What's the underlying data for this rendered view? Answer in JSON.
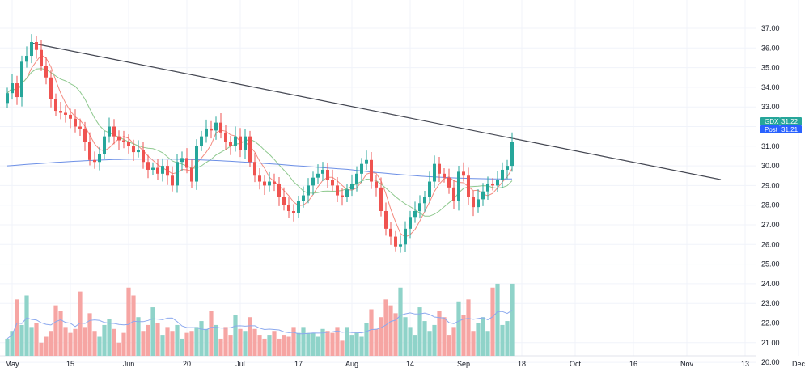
{
  "chart_data": {
    "type": "candlestick",
    "ticker": "GDX",
    "y_range": [
      19.6,
      37.2
    ],
    "y_ticks": [
      "37.00",
      "36.00",
      "35.00",
      "34.00",
      "33.00",
      "32.00",
      "31.00",
      "30.00",
      "29.00",
      "28.00",
      "27.00",
      "26.00",
      "25.00",
      "24.00",
      "23.00",
      "22.00",
      "21.00",
      "20.00"
    ],
    "x_tick_labels": [
      "May",
      "15",
      "Jun",
      "20",
      "Jul",
      "17",
      "Aug",
      "14",
      "Sep",
      "18",
      "Oct",
      "16",
      "Nov",
      "13",
      "Dec"
    ],
    "x_tick_bar_index": [
      0,
      12,
      24,
      36,
      47,
      59,
      70,
      82,
      93,
      105,
      116,
      128,
      139,
      151,
      162
    ],
    "price_label": "31.22",
    "post_label": "Post",
    "post_price": "31.21",
    "last_price": 31.22,
    "trendline": {
      "from": [
        5,
        36.25
      ],
      "to": [
        147,
        29.3
      ]
    },
    "colors": {
      "up": "#26a69a",
      "down": "#ef5350",
      "vol_up": "#8fd3c9",
      "vol_down": "#f6a5a3",
      "sma20": "#f48a7f",
      "sma50": "#8fc98f",
      "sma200": "#6c8fe6",
      "vol_ma": "#8ca9ee",
      "trendline": "#434651",
      "badge_ticker": "#26a69a",
      "badge_post": "#2962ff"
    },
    "closes": [
      33.7,
      34.2,
      33.5,
      35.3,
      35.6,
      36.3,
      35.9,
      35.1,
      34.5,
      33.4,
      32.8,
      32.7,
      32.6,
      32.4,
      32.0,
      31.9,
      31.2,
      30.3,
      30.2,
      30.6,
      31.5,
      32.0,
      31.5,
      31.3,
      31.2,
      31.0,
      30.7,
      30.8,
      30.2,
      29.8,
      29.9,
      29.6,
      30.0,
      29.5,
      29.0,
      30.2,
      30.4,
      29.9,
      29.2,
      31.0,
      31.5,
      31.9,
      31.8,
      32.2,
      31.7,
      31.2,
      31.0,
      31.5,
      30.8,
      31.5,
      30.2,
      29.5,
      29.2,
      29.0,
      29.2,
      29.1,
      28.4,
      28.0,
      27.7,
      27.6,
      28.2,
      28.5,
      29.0,
      29.4,
      29.6,
      29.8,
      29.3,
      29.0,
      28.5,
      28.4,
      28.8,
      29.1,
      29.6,
      30.1,
      30.3,
      29.2,
      28.9,
      27.7,
      26.8,
      26.4,
      25.9,
      26.0,
      26.8,
      27.4,
      27.7,
      28.1,
      28.4,
      29.2,
      30.1,
      29.6,
      29.4,
      28.9,
      28.2,
      29.7,
      29.5,
      28.4,
      27.9,
      28.3,
      28.7,
      29.1,
      29.0,
      29.3,
      29.8,
      30.0,
      31.22
    ],
    "volumes": [
      21.2,
      21.6,
      23.2,
      21.9,
      23.4,
      21.8,
      22.0,
      21.0,
      21.3,
      21.6,
      22.9,
      22.6,
      21.8,
      21.5,
      21.7,
      23.6,
      21.8,
      22.5,
      21.6,
      21.3,
      21.9,
      22.2,
      21.7,
      21.0,
      21.5,
      23.8,
      23.4,
      22.3,
      21.6,
      21.9,
      22.8,
      22.0,
      21.4,
      21.8,
      21.6,
      21.9,
      21.2,
      21.5,
      21.6,
      21.8,
      22.1,
      21.7,
      22.6,
      21.9,
      21.2,
      21.8,
      21.4,
      22.4,
      21.7,
      21.6,
      22.3,
      21.7,
      21.4,
      21.2,
      21.4,
      21.6,
      21.2,
      21.4,
      21.3,
      21.8,
      21.5,
      21.8,
      21.5,
      21.5,
      21.3,
      21.7,
      21.6,
      21.5,
      21.8,
      21.1,
      21.8,
      21.4,
      21.5,
      21.3,
      22.0,
      22.7,
      21.7,
      22.3,
      23.2,
      22.9,
      22.5,
      23.8,
      22.3,
      21.8,
      21.4,
      22.8,
      22.1,
      21.6,
      21.9,
      22.6,
      22.3,
      21.4,
      21.8,
      23.1,
      22.4,
      23.2,
      21.6,
      22.0,
      22.3,
      21.6,
      23.8,
      24.0,
      21.9,
      22.1,
      24.0
    ]
  }
}
